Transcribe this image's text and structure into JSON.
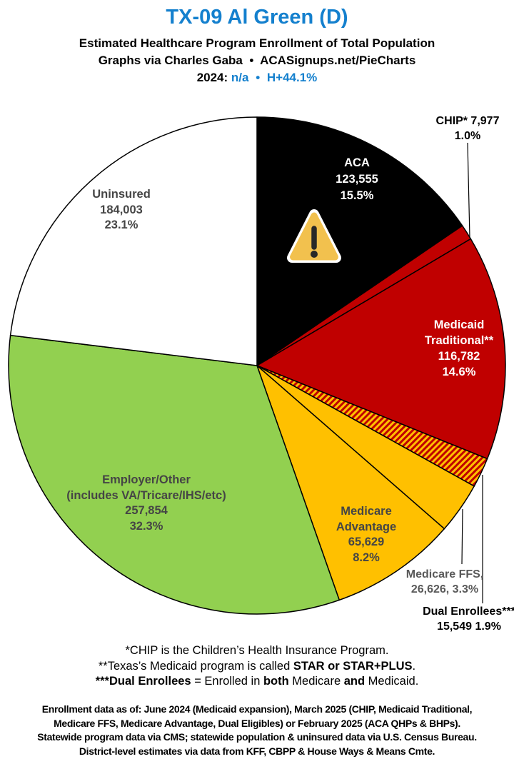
{
  "header": {
    "title": "TX-09 Al Green (D)",
    "subtitle1": "Estimated Healthcare Program Enrollment of Total Population",
    "subtitle2": "Graphs via Charles Gaba  •  ACASignups.net/PieCharts",
    "year_label": "2024:",
    "year_value": "n/a",
    "bullet": "•",
    "house_margin": "H+44.1%",
    "accent_color": "#1480CE"
  },
  "chart_data": {
    "type": "pie",
    "title": "Estimated Healthcare Program Enrollment of Total Population",
    "district": "TX-09",
    "representative": "Al Green",
    "party": "D",
    "direction": "clockwise",
    "start_angle_deg": 0,
    "legend": "none",
    "warning_icon": "warning-triangle-icon",
    "slices": [
      {
        "id": "aca",
        "name": "ACA",
        "value": 123555,
        "value_display": "123,555",
        "pct": 15.5,
        "pct_display": "15.5%",
        "color": "#000000",
        "label_color": "#FFFFFF",
        "label_placement": "inside",
        "label_lines": [
          "ACA",
          "123,555",
          "15.5%"
        ],
        "has_warning_icon": true
      },
      {
        "id": "chip",
        "name": "CHIP*",
        "value": 7977,
        "value_display": "7,977",
        "pct": 1.0,
        "pct_display": "1.0%",
        "color": "#C00000",
        "label_color": "#000000",
        "label_placement": "outside",
        "label_lines": [
          "CHIP* 7,977",
          "1.0%"
        ]
      },
      {
        "id": "medicaid-traditional",
        "name": "Medicaid Traditional**",
        "value": 116782,
        "value_display": "116,782",
        "pct": 14.6,
        "pct_display": "14.6%",
        "color": "#C00000",
        "label_color": "#FFFFFF",
        "label_placement": "inside",
        "label_lines": [
          "Medicaid",
          "Traditional**",
          "116,782",
          "14.6%"
        ]
      },
      {
        "id": "dual-enrollees",
        "name": "Dual Enrollees***",
        "value": 15549,
        "value_display": "15,549",
        "pct": 1.9,
        "pct_display": "1.9%",
        "pattern": "hatch",
        "hatch_colors": [
          "#C00000",
          "#FFC000"
        ],
        "label_color": "#000000",
        "label_placement": "outside",
        "label_lines": [
          "Dual Enrollees***",
          "15,549 1.9%"
        ]
      },
      {
        "id": "medicare-ffs",
        "name": "Medicare FFS",
        "value": 26626,
        "value_display": "26,626",
        "pct": 3.3,
        "pct_display": "3.3%",
        "color": "#FFC000",
        "label_color": "#595959",
        "label_placement": "outside",
        "label_lines": [
          "Medicare FFS,",
          "26,626, 3.3%"
        ]
      },
      {
        "id": "medicare-advantage",
        "name": "Medicare Advantage",
        "value": 65629,
        "value_display": "65,629",
        "pct": 8.2,
        "pct_display": "8.2%",
        "color": "#FFC000",
        "label_color": "#454545",
        "label_placement": "inside",
        "label_lines": [
          "Medicare",
          "Advantage",
          "65,629",
          "8.2%"
        ]
      },
      {
        "id": "employer-other",
        "name": "Employer/Other (includes VA/Tricare/IHS/etc)",
        "value": 257854,
        "value_display": "257,854",
        "pct": 32.3,
        "pct_display": "32.3%",
        "color": "#92D050",
        "label_color": "#454545",
        "label_placement": "inside",
        "label_lines": [
          "Employer/Other",
          "(includes VA/Tricare/IHS/etc)",
          "257,854",
          "32.3%"
        ]
      },
      {
        "id": "uninsured",
        "name": "Uninsured",
        "value": 184003,
        "value_display": "184,003",
        "pct": 23.1,
        "pct_display": "23.1%",
        "color": "#FFFFFF",
        "label_color": "#454545",
        "label_placement": "inside",
        "label_lines": [
          "Uninsured",
          "184,003",
          "23.1%"
        ]
      }
    ]
  },
  "footnotes": {
    "chip": "*CHIP is the Children’s Health Insurance Program.",
    "medicaid_pre": "**Texas’s Medicaid program is called ",
    "medicaid_bold": "STAR or STAR+PLUS",
    "medicaid_post": ".",
    "dual_bold1": "***Dual Enrollees",
    "dual_mid1": " = Enrolled in ",
    "dual_bold2": "both",
    "dual_mid2": " Medicare ",
    "dual_bold3": "and",
    "dual_post": " Medicaid."
  },
  "source": {
    "line1": "Enrollment data as of: June 2024 (Medicaid expansion), March 2025 (CHIP, Medicaid Traditional,",
    "line2": "Medicare FFS, Medicare Advantage, Dual Eligibles) or February 2025 (ACA QHPs & BHPs).",
    "line3": "Statewide program data via CMS; statewide population & uninsured data via U.S. Census Bureau.",
    "line4": "District-level estimates via data from KFF, CBPP & House Ways & Means Cmte."
  }
}
